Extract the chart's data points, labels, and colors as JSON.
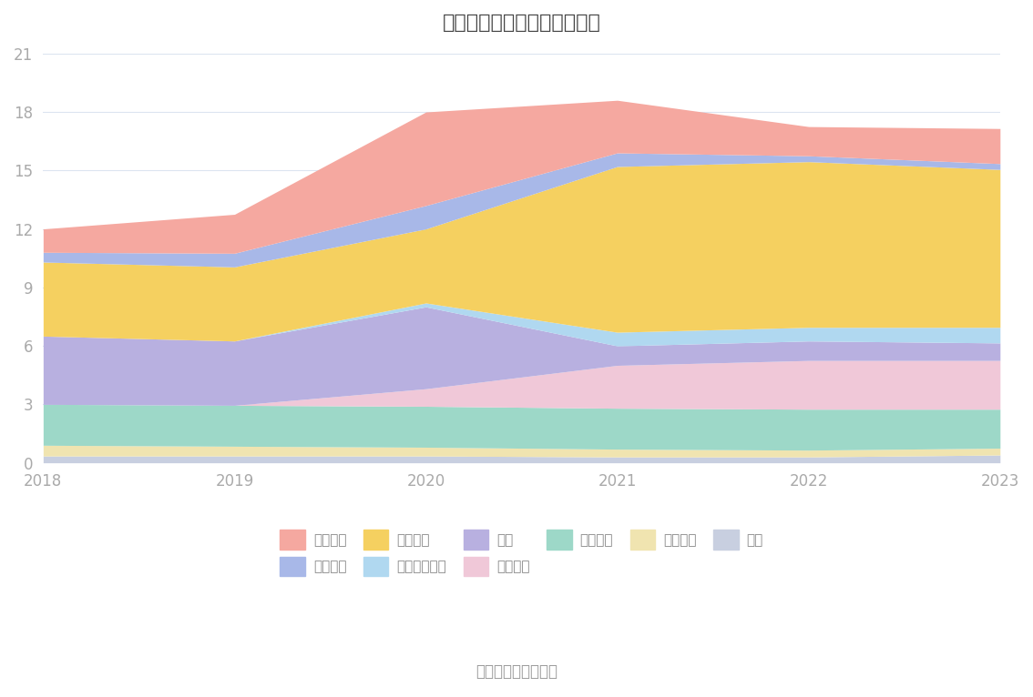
{
  "years": [
    2018,
    2019,
    2020,
    2021,
    2022,
    2023
  ],
  "title": "历年主要资产堆积图（亿元）",
  "source_text": "数据来源：恒生聚源",
  "ylim": [
    0,
    21
  ],
  "yticks": [
    0,
    3,
    6,
    9,
    12,
    15,
    18,
    21
  ],
  "series": [
    {
      "name": "其它",
      "color": "#c8cfe0",
      "values": [
        0.35,
        0.35,
        0.35,
        0.3,
        0.3,
        0.4
      ]
    },
    {
      "name": "无形资产",
      "color": "#f0e4b0",
      "values": [
        0.55,
        0.5,
        0.45,
        0.4,
        0.35,
        0.35
      ]
    },
    {
      "name": "固定资产",
      "color": "#9dd8c8",
      "values": [
        2.1,
        2.1,
        2.1,
        2.1,
        2.1,
        2.0
      ]
    },
    {
      "name": "合同资产",
      "color": "#f0c8d8",
      "values": [
        0.0,
        0.0,
        0.9,
        2.2,
        2.5,
        2.5
      ]
    },
    {
      "name": "存货",
      "color": "#b8b0e0",
      "values": [
        3.5,
        3.3,
        4.2,
        1.0,
        1.0,
        0.9
      ]
    },
    {
      "name": "应收款项融资",
      "color": "#b0d8f0",
      "values": [
        0.0,
        0.0,
        0.2,
        0.7,
        0.7,
        0.8
      ]
    },
    {
      "name": "应收账款",
      "color": "#f5d060",
      "values": [
        3.8,
        3.8,
        3.8,
        8.5,
        8.5,
        8.1
      ]
    },
    {
      "name": "应收票据",
      "color": "#a8b8e8",
      "values": [
        0.5,
        0.7,
        1.2,
        0.7,
        0.3,
        0.3
      ]
    },
    {
      "name": "货币资金",
      "color": "#f5a8a0",
      "values": [
        1.2,
        2.0,
        4.8,
        2.7,
        1.5,
        1.8
      ]
    }
  ],
  "legend_order": [
    8,
    7,
    6,
    5,
    4,
    3,
    2,
    1,
    0
  ],
  "legend_names_row1": [
    "货币资金",
    "应收票据",
    "应收账款",
    "应收款项融资",
    "存货",
    "合同资产"
  ],
  "legend_names_row2": [
    "固定资产",
    "无形资产",
    "其它"
  ],
  "background_color": "#ffffff",
  "grid_color": "#dce4f0",
  "tick_color": "#aaaaaa",
  "title_fontsize": 16,
  "legend_fontsize": 11
}
